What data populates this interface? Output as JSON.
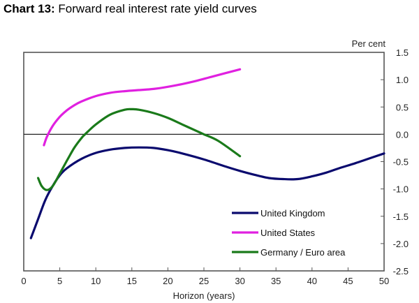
{
  "title": {
    "prefix": "Chart 13:",
    "text": "Forward real interest rate yield curves"
  },
  "chart_data": {
    "type": "line",
    "title": "Chart 13: Forward real interest rate yield curves",
    "xlabel": "Horizon (years)",
    "ylabel": "Per cent",
    "xlim": [
      0,
      50
    ],
    "ylim": [
      -2.5,
      1.5
    ],
    "x_ticks": [
      0,
      5,
      10,
      15,
      20,
      25,
      30,
      35,
      40,
      45,
      50
    ],
    "y_ticks": [
      1.5,
      1.0,
      0.5,
      0.0,
      -0.5,
      -1.0,
      -1.5,
      -2.0,
      -2.5
    ],
    "y_tick_labels": [
      "1.5",
      "1.0",
      "0.5",
      "0.0",
      "-0.5",
      "-1.0",
      "-1.5",
      "-2.0",
      "-2.5"
    ],
    "y_axis_position": "right",
    "grid": false,
    "zero_line": true,
    "legend_position": "lower right inside",
    "series": [
      {
        "name": "United Kingdom",
        "color": "#0a0a6e",
        "x": [
          1,
          2,
          3,
          4,
          5,
          6,
          8,
          10,
          12,
          14,
          16,
          18,
          20,
          22,
          25,
          28,
          30,
          32,
          34,
          36,
          38,
          40,
          42,
          44,
          46,
          48,
          50
        ],
        "values": [
          -1.9,
          -1.55,
          -1.2,
          -0.95,
          -0.75,
          -0.62,
          -0.45,
          -0.34,
          -0.28,
          -0.25,
          -0.24,
          -0.25,
          -0.29,
          -0.35,
          -0.46,
          -0.59,
          -0.67,
          -0.74,
          -0.8,
          -0.82,
          -0.82,
          -0.77,
          -0.7,
          -0.61,
          -0.53,
          -0.44,
          -0.35
        ]
      },
      {
        "name": "United States",
        "color": "#e020e0",
        "x": [
          2.8,
          3.2,
          4,
          5,
          6,
          7,
          8,
          10,
          12,
          14,
          16,
          18,
          20,
          22,
          24,
          26,
          28,
          30
        ],
        "values": [
          -0.2,
          -0.05,
          0.15,
          0.32,
          0.44,
          0.53,
          0.6,
          0.7,
          0.76,
          0.79,
          0.81,
          0.83,
          0.87,
          0.92,
          0.98,
          1.05,
          1.12,
          1.19
        ]
      },
      {
        "name": "Germany / Euro area",
        "color": "#1a7a1a",
        "x": [
          2,
          2.5,
          3.2,
          4,
          5,
          6,
          7,
          8,
          8.5,
          10,
          12,
          14,
          15,
          16,
          18,
          20,
          22,
          24,
          25,
          27,
          30
        ],
        "values": [
          -0.8,
          -0.95,
          -1.02,
          -0.95,
          -0.72,
          -0.48,
          -0.25,
          -0.07,
          0.0,
          0.18,
          0.36,
          0.45,
          0.46,
          0.45,
          0.39,
          0.3,
          0.18,
          0.06,
          0.0,
          -0.12,
          -0.4
        ]
      }
    ]
  },
  "legend": {
    "items": [
      {
        "label": "United Kingdom",
        "color": "#0a0a6e"
      },
      {
        "label": "United States",
        "color": "#e020e0"
      },
      {
        "label": "Germany / Euro area",
        "color": "#1a7a1a"
      }
    ]
  },
  "axes": {
    "x_title": "Horizon (years)",
    "y_unit": "Per cent"
  }
}
